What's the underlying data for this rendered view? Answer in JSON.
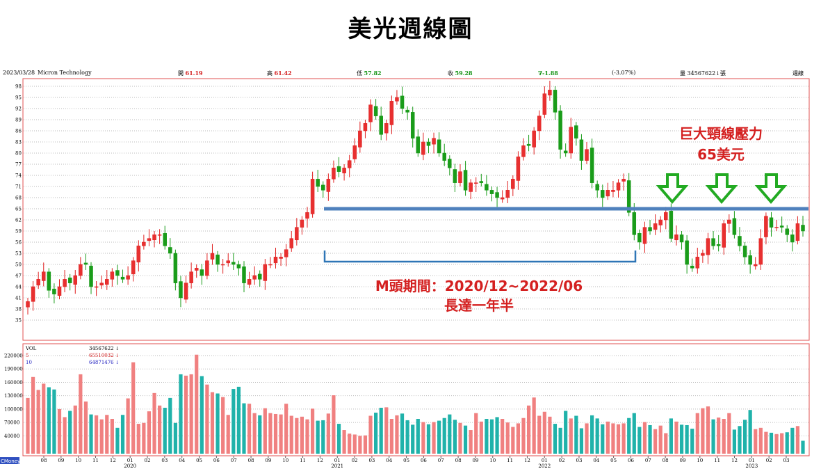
{
  "title": "美光週線圖",
  "info": {
    "date": "2023/03/28",
    "name": "Micron Technology",
    "open_label": "開",
    "open": "61.19",
    "high_label": "高",
    "high": "61.42",
    "low_label": "低",
    "low": "57.82",
    "close_label": "收",
    "close": "59.28",
    "change": "∇-1.88",
    "change_pct": "(-3.07%)",
    "volume_label": "量",
    "volume": "34567622",
    "volume_unit": "↓張",
    "period": "週線"
  },
  "annotations": {
    "resistance_title": "巨大頸線壓力",
    "resistance_value": "65美元",
    "m_top_period": "M頭期間：2020/12~2022/06",
    "m_top_length": "長達一年半"
  },
  "volume_legend": {
    "vol_label": "VOL",
    "vol_value": "34567622 ↓",
    "ma5_label": "5",
    "ma5_value": "65510032 ↓",
    "ma10_label": "10",
    "ma10_value": "64871476 ↓"
  },
  "corner_label": "CMoney",
  "colors": {
    "up": "#f08080",
    "up_stroke": "#e02020",
    "down": "#1a9c1a",
    "vol_up": "#f08080",
    "vol_down": "#20b2aa",
    "neckline": "#4f81bd",
    "annotation": "#d42020",
    "frame": "#e05050"
  },
  "chart_data": {
    "type": "candlestick",
    "title": "美光週線圖",
    "yticks": [
      35,
      38,
      41,
      44,
      47,
      50,
      53,
      56,
      59,
      62,
      65,
      68,
      71,
      74,
      77,
      80,
      83,
      86,
      89,
      92,
      95,
      98
    ],
    "ylim": [
      32,
      99
    ],
    "neckline": 65,
    "month_ticks": [
      "08",
      "09",
      "10",
      "11",
      "12",
      "01",
      "02",
      "03",
      "04",
      "05",
      "06",
      "07",
      "08",
      "09",
      "10",
      "11",
      "12",
      "01",
      "02",
      "03",
      "04",
      "05",
      "06",
      "07",
      "08",
      "09",
      "10",
      "11",
      "12",
      "01",
      "02",
      "03",
      "04",
      "05",
      "06",
      "07",
      "08",
      "09",
      "10",
      "11",
      "12",
      "01",
      "02",
      "03"
    ],
    "year_labels": [
      {
        "year": "2020",
        "month_index": 5
      },
      {
        "year": "2021",
        "month_index": 17
      },
      {
        "year": "2022",
        "month_index": 29
      },
      {
        "year": "2023",
        "month_index": 41
      }
    ],
    "close": [
      40,
      44,
      46,
      48,
      43,
      42,
      44,
      46,
      45,
      47,
      50,
      50,
      44,
      44,
      45,
      46,
      48,
      47,
      46,
      47,
      51,
      55,
      56,
      57,
      58,
      58,
      55,
      53,
      45,
      41,
      45,
      48,
      49,
      47,
      51,
      53,
      50,
      50,
      51,
      50,
      49,
      45,
      46,
      47,
      46,
      50,
      50,
      52,
      52,
      54,
      57,
      60,
      62,
      64,
      73,
      71,
      70,
      73,
      76,
      75,
      76,
      78,
      82,
      86,
      88,
      93,
      90,
      85,
      88,
      94,
      95,
      92,
      91,
      84,
      80,
      83,
      82,
      84,
      80,
      78,
      76,
      72,
      75,
      70,
      72,
      72,
      72,
      70,
      69,
      68,
      68,
      70,
      73,
      79,
      82,
      82,
      86,
      90,
      96,
      97,
      91,
      81,
      80,
      87,
      84,
      78,
      81,
      72,
      70,
      68,
      70,
      70,
      72,
      73,
      64,
      58,
      56,
      60,
      59,
      61,
      62,
      64,
      57,
      58,
      56,
      50,
      49,
      52,
      53,
      57,
      55,
      55,
      61,
      62,
      58,
      55,
      52,
      50,
      50,
      57,
      63,
      60,
      60,
      60,
      58,
      56,
      61,
      59
    ],
    "volume_approx_k": [
      125,
      172,
      143,
      157,
      149,
      144,
      100,
      82,
      96,
      108,
      178,
      117,
      88,
      86,
      77,
      87,
      78,
      58,
      87,
      124,
      205,
      67,
      69,
      95,
      136,
      108,
      103,
      125,
      69,
      178,
      175,
      178,
      222,
      174,
      155,
      138,
      135,
      127,
      87,
      145,
      150,
      113,
      112,
      91,
      86,
      102,
      91,
      89,
      88,
      112,
      85,
      80,
      83,
      77,
      101,
      74,
      75,
      90,
      131,
      67,
      53,
      45,
      43,
      40,
      41,
      85,
      92,
      103,
      104,
      78,
      86,
      90,
      75,
      65,
      78,
      71,
      66,
      71,
      74,
      80,
      88,
      76,
      69,
      63,
      53,
      91,
      72,
      78,
      77,
      82,
      78,
      70,
      60,
      68,
      80,
      108,
      126,
      85,
      94,
      83,
      67,
      58,
      96,
      79,
      85,
      57,
      68,
      86,
      79,
      66,
      72,
      68,
      66,
      68,
      80,
      91,
      60,
      71,
      64,
      55,
      63,
      46,
      79,
      72,
      65,
      64,
      56,
      91,
      102,
      106,
      77,
      81,
      78,
      91,
      54,
      62,
      76,
      98,
      55,
      58,
      49,
      47,
      44,
      46,
      48,
      58,
      62,
      29
    ]
  }
}
